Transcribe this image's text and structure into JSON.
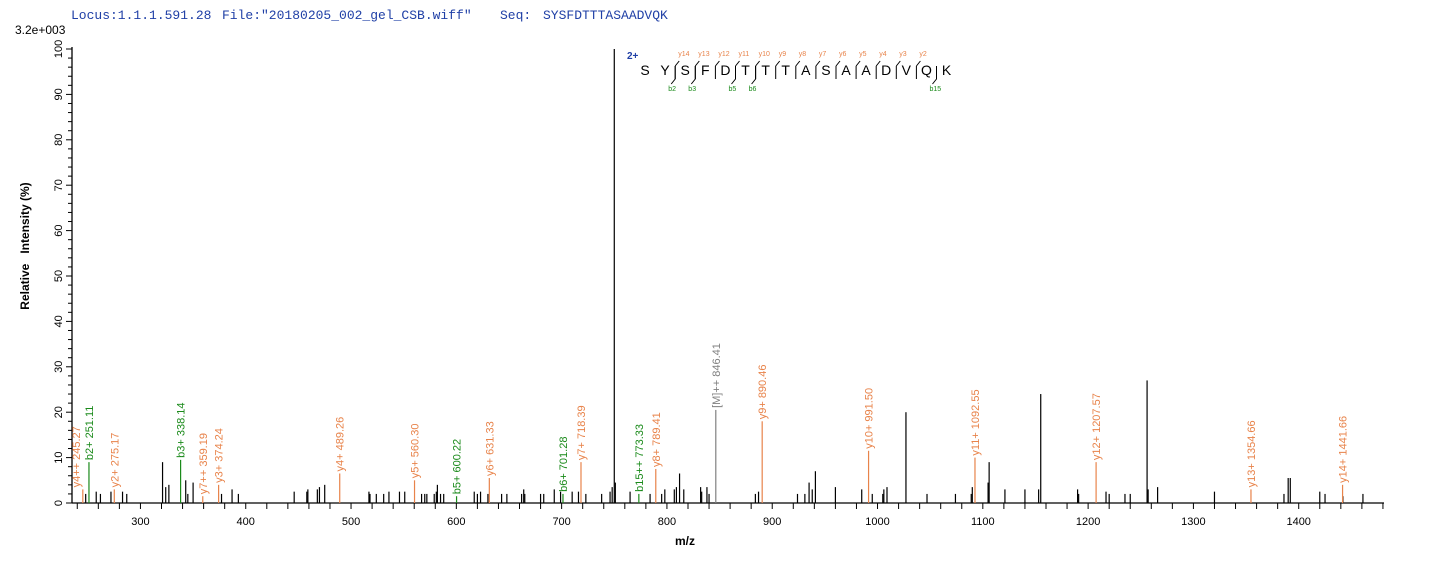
{
  "header": {
    "locus": "Locus:1.1.1.591.28",
    "file": "File:\"20180205_002_gel_CSB.wiff\"",
    "seq_label": "Seq:",
    "seq_value": "SYSFDTTTASAADVQK",
    "scale": "3.2e+003"
  },
  "chart_data": {
    "type": "bar",
    "xlabel": "m/z",
    "ylabel": "Relative   Intensity (%)",
    "xlim": [
      235,
      1481
    ],
    "ylim": [
      0,
      100
    ],
    "xticks": [
      300,
      400,
      500,
      600,
      700,
      800,
      900,
      1000,
      1100,
      1200,
      1300,
      1400
    ],
    "yticks": [
      0,
      10,
      20,
      30,
      40,
      50,
      60,
      70,
      80,
      90,
      100
    ],
    "grid": false,
    "colors": {
      "y": "#e8834a",
      "b": "#1a8a1a",
      "M": "#808080",
      "none": "#000000",
      "charge": "#1f3fa6"
    },
    "annotated_peaks": [
      {
        "mz": 245.27,
        "intensity": 3,
        "type": "y",
        "label": "y4++ 245.27"
      },
      {
        "mz": 251.11,
        "intensity": 9,
        "type": "b",
        "label": "b2+ 251.11"
      },
      {
        "mz": 275.17,
        "intensity": 3,
        "type": "y",
        "label": "y2+ 275.17"
      },
      {
        "mz": 338.14,
        "intensity": 9.5,
        "type": "b",
        "label": "b3+ 338.14"
      },
      {
        "mz": 359.19,
        "intensity": 1.5,
        "type": "y",
        "label": "y7++ 359.19"
      },
      {
        "mz": 374.24,
        "intensity": 4,
        "type": "y",
        "label": "y3+ 374.24"
      },
      {
        "mz": 489.26,
        "intensity": 6.5,
        "type": "y",
        "label": "y4+ 489.26"
      },
      {
        "mz": 560.3,
        "intensity": 5,
        "type": "y",
        "label": "y5+ 560.30"
      },
      {
        "mz": 600.22,
        "intensity": 1.5,
        "type": "b",
        "label": "b5+ 600.22"
      },
      {
        "mz": 631.33,
        "intensity": 5.5,
        "type": "y",
        "label": "y6+ 631.33"
      },
      {
        "mz": 701.28,
        "intensity": 2,
        "type": "b",
        "label": "b6+ 701.28"
      },
      {
        "mz": 718.39,
        "intensity": 9,
        "type": "y",
        "label": "y7+ 718.39"
      },
      {
        "mz": 773.33,
        "intensity": 2,
        "type": "b",
        "label": "b15++ 773.33"
      },
      {
        "mz": 789.41,
        "intensity": 7.5,
        "type": "y",
        "label": "y8+ 789.41"
      },
      {
        "mz": 846.41,
        "intensity": 20.5,
        "type": "M",
        "label": "[M]++ 846.41"
      },
      {
        "mz": 890.46,
        "intensity": 18,
        "type": "y",
        "label": "y9+ 890.46"
      },
      {
        "mz": 991.5,
        "intensity": 11.5,
        "type": "y",
        "label": "y10+ 991.50"
      },
      {
        "mz": 1092.55,
        "intensity": 10,
        "type": "y",
        "label": "y11+ 1092.55"
      },
      {
        "mz": 1207.57,
        "intensity": 9,
        "type": "y",
        "label": "y12+ 1207.57"
      },
      {
        "mz": 1354.66,
        "intensity": 3,
        "type": "y",
        "label": "y13+ 1354.66"
      },
      {
        "mz": 1441.66,
        "intensity": 4,
        "type": "y",
        "label": "y14+ 1441.66"
      }
    ],
    "peaks": [
      [
        248,
        2
      ],
      [
        258,
        2.5
      ],
      [
        262,
        2
      ],
      [
        272,
        2.5
      ],
      [
        283,
        2.5
      ],
      [
        287,
        2
      ],
      [
        321,
        9
      ],
      [
        324,
        3.5
      ],
      [
        327,
        4
      ],
      [
        343,
        5
      ],
      [
        345,
        2
      ],
      [
        350,
        4.5
      ],
      [
        377,
        2
      ],
      [
        387,
        3
      ],
      [
        393,
        2
      ],
      [
        446,
        2.5
      ],
      [
        458,
        2.5
      ],
      [
        459,
        3
      ],
      [
        468,
        3
      ],
      [
        470,
        3.5
      ],
      [
        475,
        4
      ],
      [
        517,
        2.5
      ],
      [
        518,
        2
      ],
      [
        524,
        2
      ],
      [
        531,
        2
      ],
      [
        536,
        2.5
      ],
      [
        546,
        2.5
      ],
      [
        551,
        2.5
      ],
      [
        567,
        2
      ],
      [
        570,
        2
      ],
      [
        572,
        2
      ],
      [
        579,
        2
      ],
      [
        581,
        2.5
      ],
      [
        582,
        4
      ],
      [
        585,
        2
      ],
      [
        588,
        2
      ],
      [
        617,
        2.5
      ],
      [
        620,
        2
      ],
      [
        623,
        2.5
      ],
      [
        630,
        2
      ],
      [
        643,
        2
      ],
      [
        648,
        2
      ],
      [
        662,
        2
      ],
      [
        664,
        3
      ],
      [
        665,
        2
      ],
      [
        680,
        2
      ],
      [
        683,
        2
      ],
      [
        693,
        3
      ],
      [
        699,
        2.5
      ],
      [
        710,
        2.5
      ],
      [
        716,
        2.5
      ],
      [
        723,
        2
      ],
      [
        738,
        2
      ],
      [
        746,
        2.5
      ],
      [
        748,
        3.5
      ],
      [
        750,
        100
      ],
      [
        751,
        4.5
      ],
      [
        765,
        2.5
      ],
      [
        784,
        2
      ],
      [
        795,
        2
      ],
      [
        798,
        3
      ],
      [
        807,
        3
      ],
      [
        809,
        3.5
      ],
      [
        812,
        6.5
      ],
      [
        816,
        3
      ],
      [
        832,
        3.5
      ],
      [
        833,
        2.5
      ],
      [
        838,
        3.5
      ],
      [
        840,
        2
      ],
      [
        884,
        2
      ],
      [
        887,
        2.5
      ],
      [
        924,
        2
      ],
      [
        931,
        2
      ],
      [
        935,
        4.5
      ],
      [
        938,
        3
      ],
      [
        941,
        7
      ],
      [
        960,
        3.5
      ],
      [
        985,
        3
      ],
      [
        995,
        2
      ],
      [
        1005,
        2
      ],
      [
        1006,
        3
      ],
      [
        1009,
        3.5
      ],
      [
        1027,
        20
      ],
      [
        1047,
        2
      ],
      [
        1074,
        2
      ],
      [
        1089,
        2
      ],
      [
        1090,
        3.5
      ],
      [
        1105,
        4.5
      ],
      [
        1106,
        9
      ],
      [
        1121,
        3
      ],
      [
        1140,
        3
      ],
      [
        1153,
        3
      ],
      [
        1155,
        24
      ],
      [
        1190,
        3
      ],
      [
        1191,
        2
      ],
      [
        1217,
        2.5
      ],
      [
        1220,
        2
      ],
      [
        1235,
        2
      ],
      [
        1240,
        2
      ],
      [
        1256,
        27
      ],
      [
        1257,
        3
      ],
      [
        1266,
        3.5
      ],
      [
        1320,
        2.5
      ],
      [
        1386,
        2
      ],
      [
        1390,
        5.5
      ],
      [
        1392,
        5.5
      ],
      [
        1420,
        2.5
      ],
      [
        1425,
        2
      ],
      [
        1442,
        1.5
      ],
      [
        1461,
        2
      ]
    ],
    "sequence_annotation": {
      "charge": "2+",
      "residues": [
        "S",
        "Y",
        "S",
        "F",
        "D",
        "T",
        "T",
        "T",
        "A",
        "S",
        "A",
        "A",
        "D",
        "V",
        "Q",
        "K"
      ],
      "y_ions": [
        {
          "after": 2,
          "label": "y14"
        },
        {
          "after": 3,
          "label": "y13"
        },
        {
          "after": 4,
          "label": "y12"
        },
        {
          "after": 5,
          "label": "y11"
        },
        {
          "after": 6,
          "label": "y10"
        },
        {
          "after": 7,
          "label": "y9"
        },
        {
          "after": 8,
          "label": "y8"
        },
        {
          "after": 9,
          "label": "y7"
        },
        {
          "after": 10,
          "label": "y6"
        },
        {
          "after": 11,
          "label": "y5"
        },
        {
          "after": 12,
          "label": "y4"
        },
        {
          "after": 13,
          "label": "y3"
        },
        {
          "after": 14,
          "label": "y2"
        }
      ],
      "b_ions": [
        {
          "after": 2,
          "label": "b2"
        },
        {
          "after": 3,
          "label": "b3"
        },
        {
          "after": 5,
          "label": "b5"
        },
        {
          "after": 6,
          "label": "b6"
        },
        {
          "after": 15,
          "label": "b15"
        }
      ]
    }
  }
}
